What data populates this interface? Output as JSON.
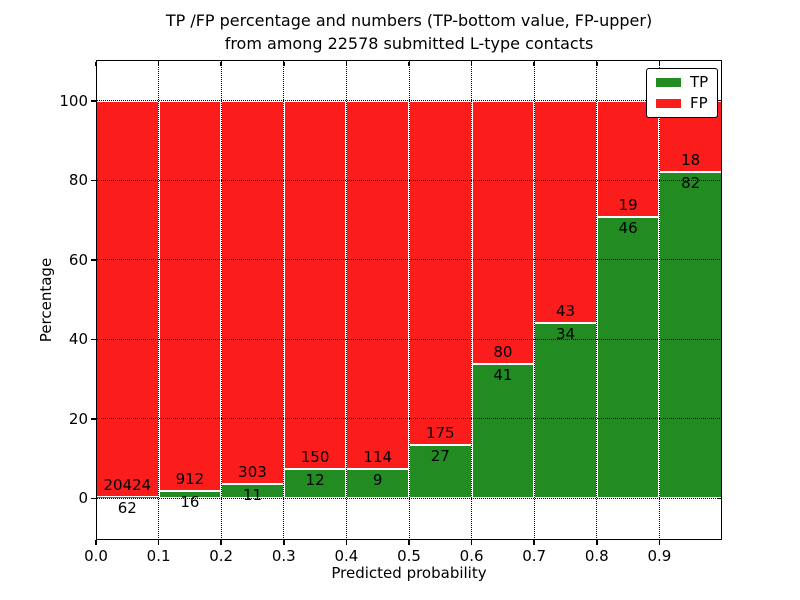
{
  "figure": {
    "title_line1": "TP /FP percentage and numbers (TP-bottom value, FP-upper)",
    "title_line2": "from among 22578 submitted L-type contacts",
    "xlabel": "Predicted probability",
    "ylabel": "Percentage"
  },
  "legend": {
    "position": "upper right",
    "entries": [
      {
        "label": "TP",
        "color": "#228b22"
      },
      {
        "label": "FP",
        "color": "#fb1c1c"
      }
    ]
  },
  "chart_data": {
    "type": "bar",
    "stacked": true,
    "normalized_to_percent": true,
    "title": "TP /FP percentage and numbers (TP-bottom value, FP-upper) from among 22578 submitted L-type contacts",
    "xlabel": "Predicted probability",
    "ylabel": "Percentage",
    "total_submitted_contacts": 22578,
    "bin_starts": [
      0.0,
      0.1,
      0.2,
      0.3,
      0.4,
      0.5,
      0.6,
      0.7,
      0.8,
      0.9
    ],
    "bin_width": 0.1,
    "x_tick_labels": [
      "0.0",
      "0.1",
      "0.2",
      "0.3",
      "0.4",
      "0.5",
      "0.6",
      "0.7",
      "0.8",
      "0.9"
    ],
    "y_ticks": [
      0,
      20,
      40,
      60,
      80,
      100
    ],
    "y_tick_labels": [
      "0",
      "20",
      "40",
      "60",
      "80",
      "100"
    ],
    "xlim": [
      0.0,
      1.0
    ],
    "ylim": [
      -10.5,
      110.3
    ],
    "grid": "dotted black, horizontal at y ticks and vertical at x ticks",
    "bar_edge_color": "#ffffff",
    "series": [
      {
        "name": "TP",
        "color": "#228b22",
        "counts": [
          62,
          16,
          11,
          12,
          9,
          27,
          41,
          34,
          46,
          82
        ]
      },
      {
        "name": "FP",
        "color": "#fb1c1c",
        "counts": [
          20424,
          912,
          303,
          150,
          114,
          175,
          80,
          43,
          19,
          18
        ]
      }
    ],
    "tp_percent_of_bin": [
      0.3,
      1.72,
      3.5,
      7.41,
      7.32,
      13.37,
      33.88,
      44.16,
      70.77,
      82.0
    ]
  }
}
